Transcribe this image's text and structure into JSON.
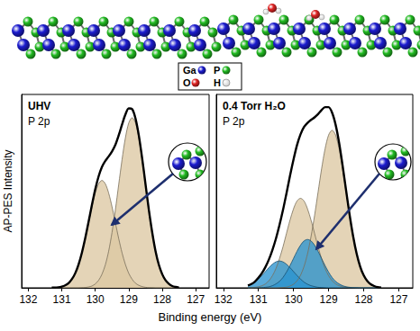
{
  "figure": {
    "xlabel": "Binding energy (eV)"
  },
  "illustration": {
    "atom_legend": [
      {
        "label": "Ga",
        "color": "#1c1cd0"
      },
      {
        "label": "P",
        "color": "#22bb22"
      },
      {
        "label": "O",
        "color": "#e02424"
      },
      {
        "label": "H",
        "color": "#ffffff"
      }
    ]
  },
  "chart_data": [
    {
      "type": "line",
      "title": "UHV",
      "subtitle": "P 2p",
      "ylabel": "AP-PES Intensity",
      "x": [
        131.3,
        131.2,
        131.1,
        131.0,
        130.9,
        130.8,
        130.7,
        130.6,
        130.5,
        130.4,
        130.3,
        130.2,
        130.1,
        130.0,
        129.9,
        129.8,
        129.7,
        129.6,
        129.5,
        129.4,
        129.3,
        129.2,
        129.1,
        129.0,
        128.9,
        128.8,
        128.7,
        128.6,
        128.5,
        128.4,
        128.3,
        128.2,
        128.1,
        128.0,
        127.9,
        127.8,
        127.7,
        127.6,
        127.5
      ],
      "xlim": [
        132.2,
        126.6
      ],
      "xticks": [
        132,
        131,
        130,
        129,
        128,
        127
      ],
      "ylim": [
        0,
        1.08
      ],
      "tick_labels": "x",
      "grid": false,
      "series": [
        {
          "type": "area",
          "color": "#dcc8a3",
          "values": [
            0,
            0,
            0,
            0,
            0,
            0,
            0,
            0,
            0,
            0.001,
            0.002,
            0.005,
            0.01,
            0.022,
            0.042,
            0.076,
            0.128,
            0.205,
            0.309,
            0.435,
            0.577,
            0.717,
            0.838,
            0.921,
            0.95,
            0.921,
            0.838,
            0.717,
            0.577,
            0.435,
            0.309,
            0.205,
            0.128,
            0.076,
            0.042,
            0.022,
            0.01,
            0.005,
            0.002
          ]
        },
        {
          "type": "area",
          "color": "#dcc8a3",
          "values": [
            0.001,
            0.001,
            0.003,
            0.007,
            0.014,
            0.026,
            0.048,
            0.081,
            0.13,
            0.195,
            0.275,
            0.364,
            0.453,
            0.529,
            0.581,
            0.6,
            0.581,
            0.529,
            0.453,
            0.364,
            0.275,
            0.195,
            0.13,
            0.081,
            0.048,
            0.026,
            0.014,
            0.007,
            0.003,
            0.001,
            0.001,
            0,
            0,
            0,
            0,
            0,
            0,
            0,
            0
          ]
        },
        {
          "type": "line",
          "color": "#000000",
          "values": [
            0.001,
            0.001,
            0.003,
            0.007,
            0.014,
            0.026,
            0.048,
            0.081,
            0.13,
            0.196,
            0.277,
            0.369,
            0.463,
            0.551,
            0.623,
            0.676,
            0.709,
            0.734,
            0.762,
            0.799,
            0.852,
            0.912,
            0.968,
            1.002,
            0.998,
            0.947,
            0.852,
            0.724,
            0.58,
            0.436,
            0.31,
            0.205,
            0.128,
            0.076,
            0.042,
            0.022,
            0.01,
            0.005,
            0.002
          ]
        }
      ]
    },
    {
      "type": "line",
      "title": "0.4 Torr H₂O",
      "subtitle": "P 2p",
      "x": [
        131.3,
        131.2,
        131.1,
        131.0,
        130.9,
        130.8,
        130.7,
        130.6,
        130.5,
        130.4,
        130.3,
        130.2,
        130.1,
        130.0,
        129.9,
        129.8,
        129.7,
        129.6,
        129.5,
        129.4,
        129.3,
        129.2,
        129.1,
        129.0,
        128.9,
        128.8,
        128.7,
        128.6,
        128.5,
        128.4,
        128.3,
        128.2,
        128.1,
        128.0,
        127.9,
        127.8,
        127.7,
        127.6,
        127.5
      ],
      "xlim": [
        132.2,
        126.6
      ],
      "xticks": [
        132,
        131,
        130,
        129,
        128,
        127
      ],
      "ylim": [
        0,
        1.08
      ],
      "tick_labels": "x",
      "grid": false,
      "series": [
        {
          "type": "area",
          "color": "#dcc8a3",
          "values": [
            0,
            0,
            0,
            0,
            0,
            0,
            0,
            0,
            0,
            0.001,
            0.002,
            0.004,
            0.01,
            0.02,
            0.039,
            0.07,
            0.119,
            0.19,
            0.286,
            0.403,
            0.534,
            0.664,
            0.776,
            0.853,
            0.88,
            0.853,
            0.776,
            0.664,
            0.534,
            0.403,
            0.286,
            0.19,
            0.119,
            0.07,
            0.039,
            0.02,
            0.01,
            0.004,
            0.002
          ]
        },
        {
          "type": "area",
          "color": "#dcc8a3",
          "values": [
            0.001,
            0.001,
            0.003,
            0.006,
            0.012,
            0.022,
            0.04,
            0.068,
            0.108,
            0.163,
            0.229,
            0.304,
            0.378,
            0.441,
            0.485,
            0.5,
            0.485,
            0.441,
            0.378,
            0.304,
            0.229,
            0.163,
            0.108,
            0.068,
            0.04,
            0.022,
            0.012,
            0.006,
            0.003,
            0.001,
            0.001,
            0,
            0,
            0,
            0,
            0,
            0,
            0,
            0
          ]
        },
        {
          "type": "area",
          "color": "#2b93cf",
          "values": [
            0,
            0,
            0,
            0.001,
            0.001,
            0.003,
            0.006,
            0.012,
            0.022,
            0.036,
            0.058,
            0.088,
            0.124,
            0.164,
            0.204,
            0.238,
            0.262,
            0.27,
            0.262,
            0.238,
            0.204,
            0.164,
            0.124,
            0.088,
            0.058,
            0.036,
            0.022,
            0.012,
            0.006,
            0.003,
            0.001,
            0.001,
            0,
            0,
            0,
            0,
            0,
            0,
            0
          ]
        },
        {
          "type": "area",
          "color": "#2b93cf",
          "values": [
            0.012,
            0.02,
            0.032,
            0.049,
            0.069,
            0.091,
            0.113,
            0.132,
            0.145,
            0.15,
            0.145,
            0.132,
            0.113,
            0.091,
            0.069,
            0.049,
            0.032,
            0.02,
            0.012,
            0.007,
            0.003,
            0.002,
            0.001,
            0,
            0,
            0,
            0,
            0,
            0,
            0,
            0,
            0,
            0,
            0,
            0,
            0,
            0,
            0,
            0
          ]
        },
        {
          "type": "line",
          "color": "#000000",
          "values": [
            0.013,
            0.021,
            0.035,
            0.056,
            0.082,
            0.116,
            0.159,
            0.212,
            0.275,
            0.35,
            0.434,
            0.528,
            0.625,
            0.716,
            0.797,
            0.857,
            0.898,
            0.921,
            0.938,
            0.952,
            0.97,
            0.993,
            1.009,
            1.009,
            0.978,
            0.911,
            0.81,
            0.682,
            0.543,
            0.407,
            0.288,
            0.191,
            0.119,
            0.07,
            0.039,
            0.02,
            0.01,
            0.004,
            0.002
          ]
        }
      ]
    }
  ]
}
